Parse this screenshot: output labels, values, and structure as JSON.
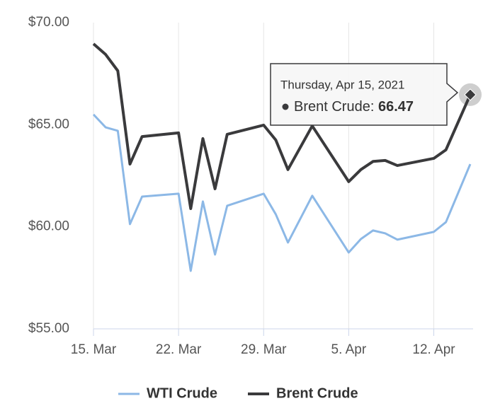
{
  "chart_data": {
    "type": "line",
    "x": [
      "2021-03-15",
      "2021-03-16",
      "2021-03-17",
      "2021-03-18",
      "2021-03-19",
      "2021-03-22",
      "2021-03-23",
      "2021-03-24",
      "2021-03-25",
      "2021-03-26",
      "2021-03-29",
      "2021-03-30",
      "2021-03-31",
      "2021-04-02",
      "2021-04-05",
      "2021-04-06",
      "2021-04-07",
      "2021-04-08",
      "2021-04-09",
      "2021-04-12",
      "2021-04-13",
      "2021-04-15"
    ],
    "series": [
      {
        "name": "WTI Crude",
        "color": "#8cb8e6",
        "values": [
          65.5,
          64.87,
          64.7,
          60.13,
          61.48,
          61.62,
          57.84,
          61.24,
          58.64,
          61.03,
          61.62,
          60.61,
          59.23,
          61.52,
          58.74,
          59.4,
          59.82,
          59.68,
          59.37,
          59.75,
          60.23,
          63.07
        ]
      },
      {
        "name": "Brent Crude",
        "color": "#3a3a3c",
        "values": [
          68.96,
          68.44,
          67.64,
          63.07,
          64.42,
          64.6,
          60.89,
          64.32,
          61.86,
          64.53,
          64.98,
          64.25,
          62.8,
          64.94,
          62.21,
          62.8,
          63.2,
          63.25,
          63.0,
          63.35,
          63.77,
          66.47
        ]
      }
    ],
    "xlim": [
      "2021-03-15",
      "2021-04-15"
    ],
    "xticks": [
      {
        "value": "2021-03-15",
        "label": "15. Mar"
      },
      {
        "value": "2021-03-22",
        "label": "22. Mar"
      },
      {
        "value": "2021-03-29",
        "label": "29. Mar"
      },
      {
        "value": "2021-04-05",
        "label": "5. Apr"
      },
      {
        "value": "2021-04-12",
        "label": "12. Apr"
      }
    ],
    "ylim": [
      55,
      70
    ],
    "yticks": [
      {
        "value": 55,
        "label": "$55.00"
      },
      {
        "value": 60,
        "label": "$60.00"
      },
      {
        "value": 65,
        "label": "$65.00"
      },
      {
        "value": 70,
        "label": "$70.00"
      }
    ],
    "x_grid": true,
    "legend": "bottom",
    "tooltip": {
      "title": "Thursday, Apr 15, 2021",
      "label": "Brent Crude:"
    }
  }
}
